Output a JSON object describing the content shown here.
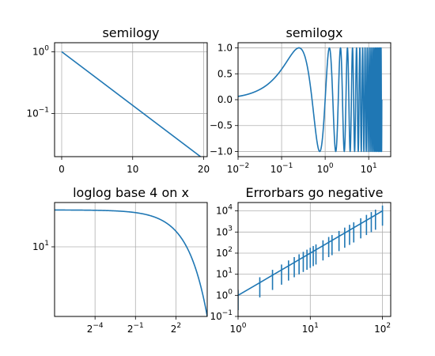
{
  "chart_data": [
    {
      "type": "line",
      "title": "semilogy",
      "xscale": "linear",
      "yscale": "log",
      "xlim": [
        -1.0,
        20.5
      ],
      "ylim": [
        0.02,
        1.4
      ],
      "grid": true,
      "x": [
        0,
        20
      ],
      "y": [
        1.0,
        0.0183
      ],
      "x_ticks": [
        0,
        10,
        20
      ],
      "x_tick_labels": [
        "0",
        "10",
        "20"
      ],
      "y_ticks": [
        1,
        0.1
      ],
      "y_tick_labels": [
        {
          "base": "10",
          "exp": "0"
        },
        {
          "base": "10",
          "exp": "−1"
        }
      ],
      "color": "#1f77b4"
    },
    {
      "type": "line",
      "title": "semilogx",
      "xscale": "log",
      "yscale": "linear",
      "xlim": [
        0.01,
        32
      ],
      "ylim": [
        -1.1,
        1.1
      ],
      "grid": true,
      "x_range": [
        0.01,
        20
      ],
      "function": "sin(2*pi*x)",
      "x_ticks": [
        0.01,
        0.1,
        1,
        10
      ],
      "x_tick_labels": [
        {
          "base": "10",
          "exp": "−2"
        },
        {
          "base": "10",
          "exp": "−1"
        },
        {
          "base": "10",
          "exp": "0"
        },
        {
          "base": "10",
          "exp": "1"
        }
      ],
      "y_ticks": [
        1.0,
        0.5,
        0.0,
        -0.5,
        -1.0
      ],
      "y_tick_labels": [
        "1.0",
        "0.5",
        "0.0",
        "−0.5",
        "−1.0"
      ],
      "color": "#1f77b4"
    },
    {
      "type": "line",
      "title": "loglog base 4 on x",
      "xscale": "log",
      "xbase": 4,
      "yscale": "log",
      "xlim": [
        0.0078,
        20
      ],
      "ylim": [
        2.7,
        23
      ],
      "grid": true,
      "x_range": [
        0.0078,
        20
      ],
      "function": "20*exp(-x/10)",
      "x_ticks": [
        0.0625,
        0.5,
        4
      ],
      "x_tick_labels": [
        {
          "base": "2",
          "exp": "−4"
        },
        {
          "base": "2",
          "exp": "−1"
        },
        {
          "base": "2",
          "exp": "2"
        }
      ],
      "y_ticks": [
        10
      ],
      "y_tick_labels": [
        {
          "base": "10",
          "exp": "1"
        }
      ],
      "color": "#1f77b4"
    },
    {
      "type": "errorbar",
      "title": "Errorbars go negative",
      "xscale": "log",
      "yscale": "log",
      "xlim": [
        1,
        130
      ],
      "ylim": [
        0.1,
        25000
      ],
      "grid": true,
      "x": [
        1,
        2,
        3,
        4,
        5,
        6,
        7,
        8,
        9,
        10,
        11,
        12,
        15,
        18,
        20,
        25,
        30,
        35,
        40,
        50,
        60,
        70,
        80,
        100
      ],
      "y": [
        1,
        4,
        9,
        16,
        25,
        36,
        49,
        64,
        81,
        100,
        121,
        144,
        225,
        324,
        400,
        625,
        900,
        1225,
        1600,
        2500,
        3600,
        4900,
        6400,
        10000
      ],
      "y_errors": "0.8 * y",
      "x_ticks": [
        1,
        10,
        100
      ],
      "x_tick_labels": [
        {
          "base": "10",
          "exp": "0"
        },
        {
          "base": "10",
          "exp": "1"
        },
        {
          "base": "10",
          "exp": "2"
        }
      ],
      "y_ticks": [
        0.1,
        1,
        10,
        100,
        1000,
        10000
      ],
      "y_tick_labels": [
        {
          "base": "10",
          "exp": "−1"
        },
        {
          "base": "10",
          "exp": "0"
        },
        {
          "base": "10",
          "exp": "1"
        },
        {
          "base": "10",
          "exp": "2"
        },
        {
          "base": "10",
          "exp": "3"
        },
        {
          "base": "10",
          "exp": "4"
        }
      ],
      "color": "#1f77b4"
    }
  ]
}
